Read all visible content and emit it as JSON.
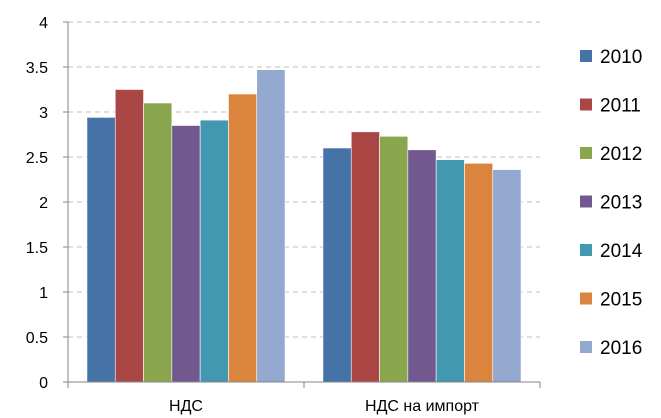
{
  "chart_data": {
    "type": "bar",
    "title": "",
    "xlabel": "",
    "ylabel": "",
    "categories": [
      "НДС",
      "НДС на импорт"
    ],
    "ylim": [
      0,
      4
    ],
    "yticks": [
      "0",
      "0.5",
      "1",
      "1.5",
      "2",
      "2.5",
      "3",
      "3.5",
      "4"
    ],
    "grid": true,
    "legend_position": "right",
    "series": [
      {
        "name": "2010",
        "color": "#4572A7",
        "values": [
          2.94,
          2.6
        ]
      },
      {
        "name": "2011",
        "color": "#AA4643",
        "values": [
          3.25,
          2.78
        ]
      },
      {
        "name": "2012",
        "color": "#89A54E",
        "values": [
          3.1,
          2.73
        ]
      },
      {
        "name": "2013",
        "color": "#71588F",
        "values": [
          2.85,
          2.58
        ]
      },
      {
        "name": "2014",
        "color": "#4198AF",
        "values": [
          2.91,
          2.47
        ]
      },
      {
        "name": "2015",
        "color": "#DB843D",
        "values": [
          3.2,
          2.43
        ]
      },
      {
        "name": "2016",
        "color": "#93A9CF",
        "values": [
          3.47,
          2.36
        ]
      }
    ]
  }
}
